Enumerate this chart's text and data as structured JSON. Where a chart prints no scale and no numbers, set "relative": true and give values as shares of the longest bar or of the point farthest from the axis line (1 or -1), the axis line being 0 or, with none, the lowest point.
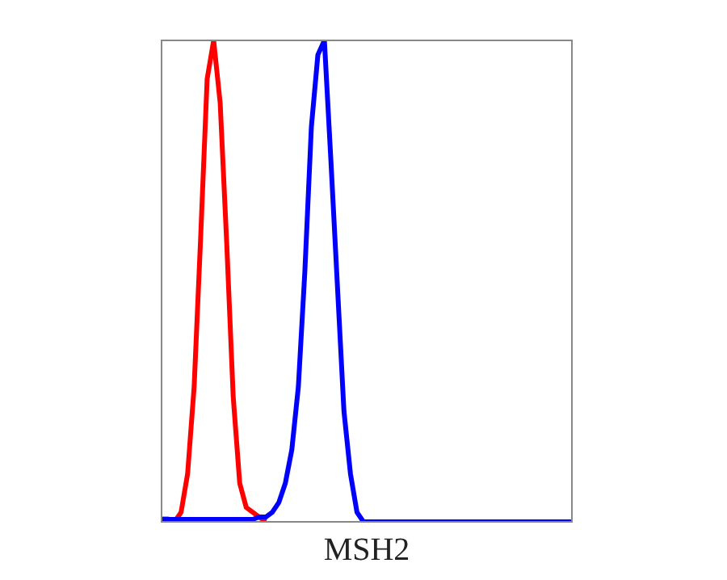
{
  "chart_data": {
    "type": "line",
    "xlabel": "MSH2",
    "relative": true,
    "categories": [
      null,
      null,
      null,
      null,
      null,
      null,
      null,
      null,
      null,
      null,
      null,
      null,
      null,
      null,
      null,
      null,
      null,
      null,
      null,
      null,
      null,
      null,
      null,
      null,
      null,
      null,
      null,
      null,
      null,
      null,
      null,
      null,
      null,
      null,
      null,
      null,
      null,
      null,
      null,
      null,
      null,
      null,
      null,
      null,
      null,
      null,
      null,
      null,
      null,
      null,
      null,
      null,
      null,
      null,
      null,
      null,
      null,
      null,
      null,
      null,
      null,
      null,
      null,
      null
    ],
    "series": [
      {
        "color": "#ff0000",
        "values": [
          0.006,
          0.006,
          0,
          0.02,
          0.1,
          0.28,
          0.59,
          0.92,
          1,
          0.87,
          0.58,
          0.26,
          0.08,
          0.03,
          0.02,
          0.01,
          0,
          null,
          null,
          null,
          null,
          null,
          null,
          null,
          null,
          null,
          null,
          null,
          null,
          null,
          null,
          null,
          null,
          null,
          null,
          null,
          null,
          null,
          null,
          null,
          null,
          null,
          null,
          null,
          null,
          null,
          null,
          null,
          null,
          null,
          null,
          null,
          null,
          null,
          null,
          null,
          null,
          null,
          null,
          null,
          null,
          null,
          null,
          null
        ]
      },
      {
        "color": "#0000ff",
        "values": [
          0.005,
          0.005,
          0.005,
          0.005,
          0.005,
          0.005,
          0.005,
          0.005,
          0.005,
          0.005,
          0.005,
          0.005,
          0.005,
          0.005,
          0.005,
          0.01,
          0.01,
          0.02,
          0.04,
          0.08,
          0.15,
          0.28,
          0.52,
          0.82,
          0.97,
          1,
          0.75,
          0.49,
          0.23,
          0.1,
          0.02,
          0,
          0,
          0,
          0,
          0,
          0,
          0,
          0,
          0,
          0,
          0,
          0,
          0,
          0,
          0,
          0,
          0,
          0,
          0,
          0,
          0,
          0,
          0,
          0,
          0,
          0,
          0,
          0,
          0,
          0,
          0,
          0,
          0
        ]
      }
    ],
    "grid": false,
    "legend": false,
    "marker": "none",
    "line_style": "solid"
  }
}
